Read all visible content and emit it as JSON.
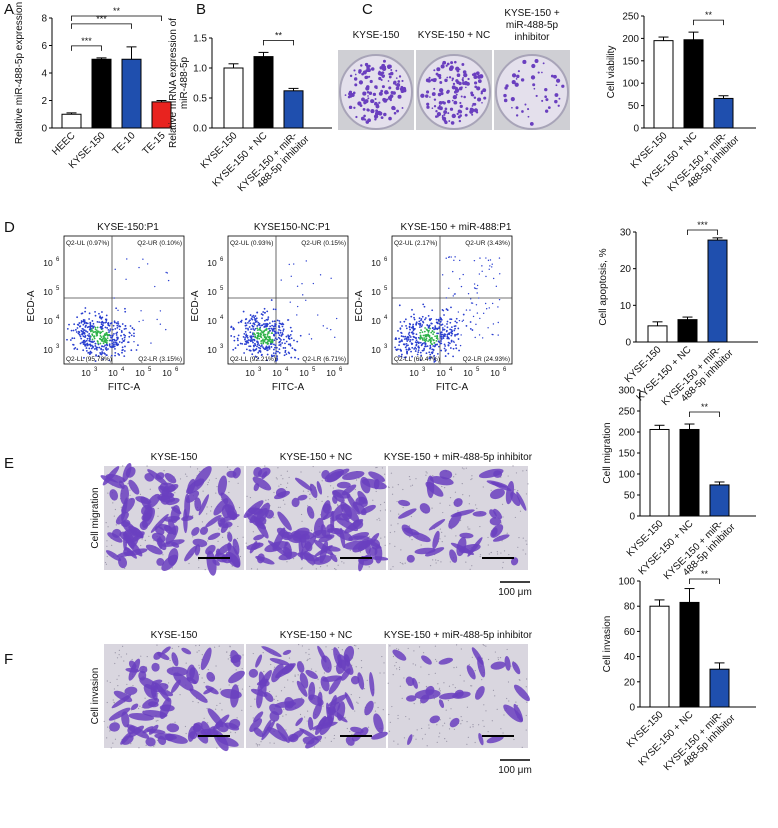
{
  "panel_letters": [
    "A",
    "B",
    "C",
    "D",
    "E",
    "F"
  ],
  "colors": {
    "white": "#ffffff",
    "black": "#000000",
    "blue": "#1f4fae",
    "red": "#e8231f",
    "stain": "#6a3fbf",
    "flow_blue": "#2a3fd0",
    "flow_green": "#2fb24a"
  },
  "chart_data": [
    {
      "id": "A",
      "type": "bar",
      "ylabel": "Relative miR-488-5p expression",
      "categories": [
        "HEEC",
        "KYSE-150",
        "TE-10",
        "TE-15"
      ],
      "values": [
        1.0,
        5.0,
        5.0,
        1.9
      ],
      "errors": [
        0.1,
        0.1,
        0.9,
        0.1
      ],
      "fills": [
        "#ffffff",
        "#000000",
        "#1f4fae",
        "#e8231f"
      ],
      "ylim": [
        0,
        8
      ],
      "yticks": [
        "0",
        "2",
        "4",
        "6",
        "8"
      ],
      "significance": [
        {
          "from": 0,
          "to": 1,
          "label": "***"
        },
        {
          "from": 0,
          "to": 2,
          "label": "***"
        },
        {
          "from": 0,
          "to": 3,
          "label": "**"
        }
      ]
    },
    {
      "id": "B",
      "type": "bar",
      "ylabel": "Relative mRNA expression of miR-488-5p",
      "categories": [
        "KYSE-150",
        "KYSE-150 + NC",
        "KYSE-150 + miR-488-5p inhibitor"
      ],
      "values": [
        1.0,
        1.19,
        0.62
      ],
      "errors": [
        0.07,
        0.07,
        0.04
      ],
      "fills": [
        "#ffffff",
        "#000000",
        "#1f4fae"
      ],
      "ylim": [
        0,
        1.5
      ],
      "yticks": [
        "0.0",
        "0.5",
        "1.0",
        "1.5"
      ],
      "significance": [
        {
          "from": 1,
          "to": 2,
          "label": "**"
        }
      ]
    },
    {
      "id": "C",
      "type": "bar",
      "ylabel": "Cell viability",
      "categories": [
        "KYSE-150",
        "KYSE-150 + NC",
        "KYSE-150 + miR-488-5p inhibitor"
      ],
      "values": [
        195,
        197,
        66
      ],
      "errors": [
        8,
        17,
        6
      ],
      "fills": [
        "#ffffff",
        "#000000",
        "#1f4fae"
      ],
      "ylim": [
        0,
        250
      ],
      "yticks": [
        "0",
        "50",
        "100",
        "150",
        "200",
        "250"
      ],
      "significance": [
        {
          "from": 1,
          "to": 2,
          "label": "**"
        }
      ]
    },
    {
      "id": "D",
      "type": "bar",
      "ylabel": "Cell apoptosis, %",
      "categories": [
        "KYSE-150",
        "KYSE-150 + NC",
        "KYSE-150 + miR-488-5p inhibitor"
      ],
      "values": [
        4.4,
        6.1,
        27.8
      ],
      "errors": [
        1.1,
        0.7,
        0.6
      ],
      "fills": [
        "#ffffff",
        "#000000",
        "#1f4fae"
      ],
      "ylim": [
        0,
        30
      ],
      "yticks": [
        "0",
        "10",
        "20",
        "30"
      ],
      "significance": [
        {
          "from": 1,
          "to": 2,
          "label": "***"
        }
      ]
    },
    {
      "id": "E",
      "type": "bar",
      "ylabel": "Cell migration",
      "categories": [
        "KYSE-150",
        "KYSE-150 + NC",
        "KYSE-150 + miR-488-5p inhibitor"
      ],
      "values": [
        206,
        206,
        74
      ],
      "errors": [
        10,
        13,
        7
      ],
      "fills": [
        "#ffffff",
        "#000000",
        "#1f4fae"
      ],
      "ylim": [
        0,
        300
      ],
      "yticks": [
        "0",
        "50",
        "100",
        "150",
        "200",
        "250",
        "300"
      ],
      "significance": [
        {
          "from": 1,
          "to": 2,
          "label": "**"
        }
      ]
    },
    {
      "id": "F",
      "type": "bar",
      "ylabel": "Cell invasion",
      "categories": [
        "KYSE-150",
        "KYSE-150 + NC",
        "KYSE-150 + miR-488-5p inhibitor"
      ],
      "values": [
        80,
        83,
        30
      ],
      "errors": [
        5,
        11,
        5
      ],
      "fills": [
        "#ffffff",
        "#000000",
        "#1f4fae"
      ],
      "ylim": [
        0,
        100
      ],
      "yticks": [
        "0",
        "20",
        "40",
        "60",
        "80",
        "100"
      ],
      "significance": [
        {
          "from": 1,
          "to": 2,
          "label": "**"
        }
      ]
    }
  ],
  "colony_labels": [
    "KYSE-150",
    "KYSE-150 + NC",
    "KYSE-150 + miR-488-5p inhibitor"
  ],
  "flow": {
    "titles": [
      "KYSE-150:P1",
      "KYSE150-NC:P1",
      "KYSE-150 + miR-488:P1"
    ],
    "xlabel": "FITC-A",
    "ylabel": "ECD-A",
    "ticks": [
      "10",
      "10",
      "10",
      "10",
      "10",
      "10"
    ],
    "tick_exps": [
      "3",
      "4",
      "5",
      "6"
    ],
    "quadrants": [
      {
        "ul": "Q2-UL (0.97%)",
        "ur": "Q2-UR (0.10%)",
        "ll": "Q2-LL (95.78%)",
        "lr": "Q2-LR (3.15%)"
      },
      {
        "ul": "Q2-UL (0.93%)",
        "ur": "Q2-UR (0.15%)",
        "ll": "Q2-LL (92.21%)",
        "lr": "Q2-LR (6.71%)"
      },
      {
        "ul": "Q2-UL (2.17%)",
        "ur": "Q2-UR (3.43%)",
        "ll": "Q2-LL (69.47%)",
        "lr": "Q2-LR (24.93%)"
      }
    ]
  },
  "migration": {
    "side_label": "Cell migration",
    "titles": [
      "KYSE-150",
      "KYSE-150 + NC",
      "KYSE-150 + miR-488-5p inhibitor"
    ],
    "scale": "100 μm"
  },
  "invasion": {
    "side_label": "Cell invasion",
    "titles": [
      "KYSE-150",
      "KYSE-150 + NC",
      "KYSE-150 + miR-488-5p inhibitor"
    ],
    "scale": "100 μm"
  }
}
